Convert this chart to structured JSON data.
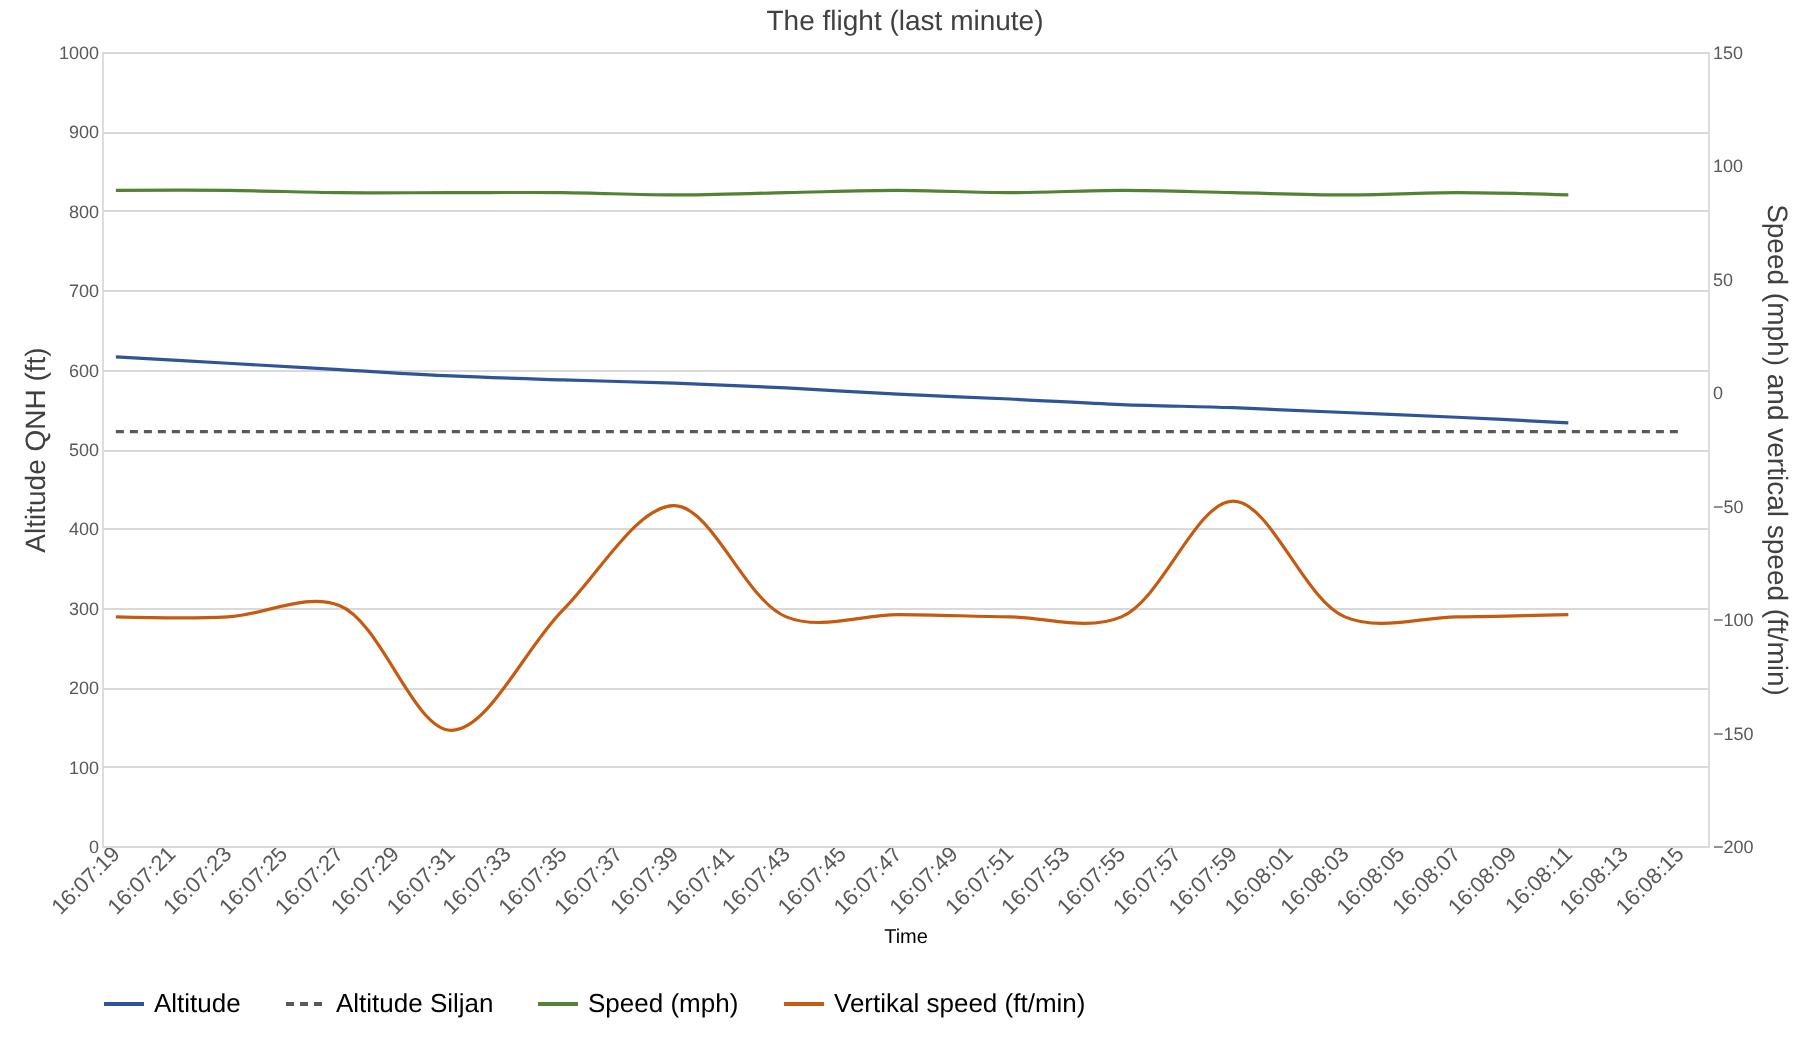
{
  "chart_data": {
    "type": "line",
    "title": "The flight (last minute)",
    "xlabel": "Time",
    "ylabel": "Altitude QNH (ft)",
    "y2label": "Speed (mph) and vertical speed (ft/min)",
    "x": [
      16.121944,
      16.123056,
      16.124167,
      16.125278,
      16.126389,
      16.1275,
      16.128611,
      16.129722,
      16.130833,
      16.131944,
      16.133056,
      16.134167,
      16.135278,
      16.136389
    ],
    "series": [
      {
        "name": "Altitude",
        "color": "#2f5597",
        "values": [
          616,
          608,
          600,
          592,
          587,
          583,
          577,
          569,
          563,
          556,
          552,
          546,
          540,
          533
        ]
      },
      {
        "name": "Altitude Siljan",
        "color": "#595959",
        "line_style": "dashed",
        "x": [
          16.121944,
          16.1375
        ],
        "values": [
          522,
          522
        ]
      },
      {
        "name": "Speed (mph)",
        "color": "#548235",
        "axis": "y2",
        "values": [
          89,
          89,
          88,
          88,
          88,
          87,
          88,
          89,
          88,
          89,
          88,
          87,
          88,
          87
        ]
      },
      {
        "name": "Vertikal speed (ft/min)",
        "color": "#c55a11",
        "axis": "y2",
        "values": [
          -99,
          -99,
          -94,
          -149,
          -96,
          -50,
          -99,
          -98,
          -99,
          -99,
          -48,
          -99,
          -99,
          -98
        ]
      }
    ],
    "xlim": [
      16.121806,
      16.137778
    ],
    "xticks": [
      {
        "value": 16.121944,
        "label": "16:07:19"
      },
      {
        "value": 16.1225,
        "label": "16:07:21"
      },
      {
        "value": 16.123056,
        "label": "16:07:23"
      },
      {
        "value": 16.123611,
        "label": "16:07:25"
      },
      {
        "value": 16.124167,
        "label": "16:07:27"
      },
      {
        "value": 16.124722,
        "label": "16:07:29"
      },
      {
        "value": 16.125278,
        "label": "16:07:31"
      },
      {
        "value": 16.125833,
        "label": "16:07:33"
      },
      {
        "value": 16.126389,
        "label": "16:07:35"
      },
      {
        "value": 16.126944,
        "label": "16:07:37"
      },
      {
        "value": 16.1275,
        "label": "16:07:39"
      },
      {
        "value": 16.128056,
        "label": "16:07:41"
      },
      {
        "value": 16.128611,
        "label": "16:07:43"
      },
      {
        "value": 16.129167,
        "label": "16:07:45"
      },
      {
        "value": 16.129722,
        "label": "16:07:47"
      },
      {
        "value": 16.130278,
        "label": "16:07:49"
      },
      {
        "value": 16.130833,
        "label": "16:07:51"
      },
      {
        "value": 16.131389,
        "label": "16:07:53"
      },
      {
        "value": 16.131944,
        "label": "16:07:55"
      },
      {
        "value": 16.1325,
        "label": "16:07:57"
      },
      {
        "value": 16.133056,
        "label": "16:07:59"
      },
      {
        "value": 16.133611,
        "label": "16:08:01"
      },
      {
        "value": 16.134167,
        "label": "16:08:03"
      },
      {
        "value": 16.134722,
        "label": "16:08:05"
      },
      {
        "value": 16.135278,
        "label": "16:08:07"
      },
      {
        "value": 16.135833,
        "label": "16:08:09"
      },
      {
        "value": 16.136389,
        "label": "16:08:11"
      },
      {
        "value": 16.136944,
        "label": "16:08:13"
      },
      {
        "value": 16.1375,
        "label": "16:08:15"
      }
    ],
    "ylim": [
      0,
      1000
    ],
    "yticks": [
      0,
      100,
      200,
      300,
      400,
      500,
      600,
      700,
      800,
      900,
      1000
    ],
    "y2lim": [
      -200,
      150
    ],
    "y2ticks": [
      -200,
      -150,
      -100,
      -50,
      0,
      50,
      100,
      150
    ],
    "grid": "y",
    "legend": "bottom",
    "marker": "none",
    "line_style": "solid"
  }
}
